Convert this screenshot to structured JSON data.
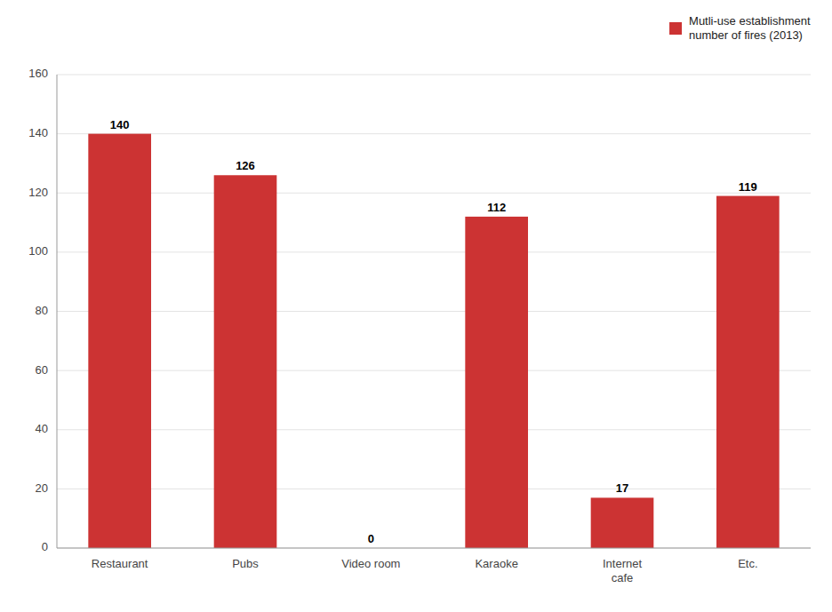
{
  "chart_data": {
    "type": "bar",
    "categories": [
      "Restaurant",
      "Pubs",
      "Video room",
      "Karaoke",
      "Internet\ncafe",
      "Etc."
    ],
    "series": [
      {
        "name": "Mutli-use establishment\nnumber of fires (2013)",
        "color": "#cc3333",
        "values": [
          140,
          126,
          0,
          112,
          17,
          119
        ]
      }
    ],
    "ylim": [
      0,
      160
    ],
    "yticks": [
      0,
      20,
      40,
      60,
      80,
      100,
      120,
      140,
      160
    ],
    "grid": true,
    "legend": "upper right",
    "data_labels": true
  }
}
